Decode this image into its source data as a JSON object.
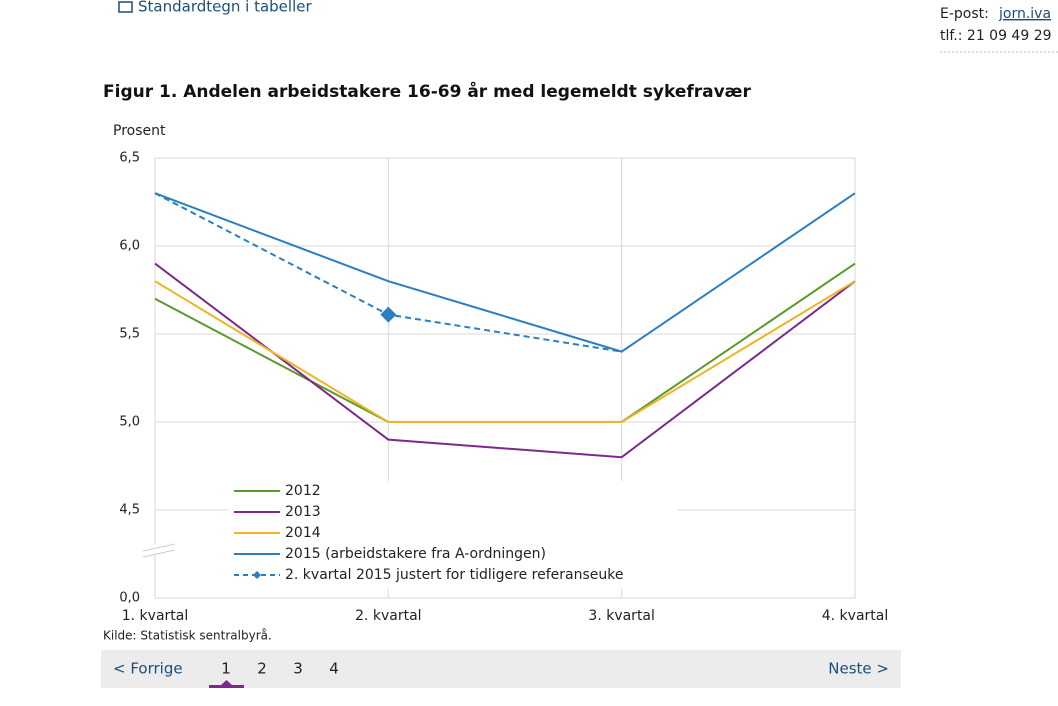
{
  "header": {
    "link": "Standardtegn i tabeller",
    "email_label": "E-post:",
    "email": "jorn.iva",
    "phone": "tlf.: 21 09 49 29"
  },
  "chart_data": {
    "type": "line",
    "title": "Figur 1. Andelen arbeidstakere 16-69 år med legemeldt sykefravær",
    "ylabel": "Prosent",
    "source": "Kilde: Statistisk sentralbyrå.",
    "categories": [
      "1. kvartal",
      "2. kvartal",
      "3. kvartal",
      "4. kvartal"
    ],
    "ylim": [
      0,
      6.5
    ],
    "yticks": [
      {
        "value": 0,
        "label": "0,0"
      },
      {
        "value": 4.5,
        "label": "4,5"
      },
      {
        "value": 5,
        "label": "5,0"
      },
      {
        "value": 5.5,
        "label": "5,5"
      },
      {
        "value": 6,
        "label": "6,0"
      },
      {
        "value": 6.5,
        "label": "6,5"
      }
    ],
    "y_break": true,
    "grid": true,
    "series": [
      {
        "name": "2012",
        "color": "#5a9a2a",
        "values": [
          5.7,
          5.0,
          5.0,
          5.9
        ]
      },
      {
        "name": "2013",
        "color": "#7b2a8c",
        "values": [
          5.9,
          4.9,
          4.8,
          5.8
        ]
      },
      {
        "name": "2014",
        "color": "#f0b323",
        "values": [
          5.8,
          5.0,
          5.0,
          5.8
        ]
      },
      {
        "name": "2015 (arbeidstakere fra A-ordningen)",
        "color": "#2a7fc1",
        "values": [
          6.3,
          5.8,
          5.4,
          6.3
        ]
      },
      {
        "name": "2. kvartal 2015 justert for tidligere referanseuke",
        "color": "#2a7fc1",
        "dashed": true,
        "markers": [
          false,
          true,
          false,
          false
        ],
        "values": [
          6.3,
          5.61,
          5.4,
          null
        ]
      }
    ]
  },
  "pagination": {
    "prev": "< Forrige",
    "pages": [
      "1",
      "2",
      "3",
      "4"
    ],
    "next": "Neste >"
  }
}
